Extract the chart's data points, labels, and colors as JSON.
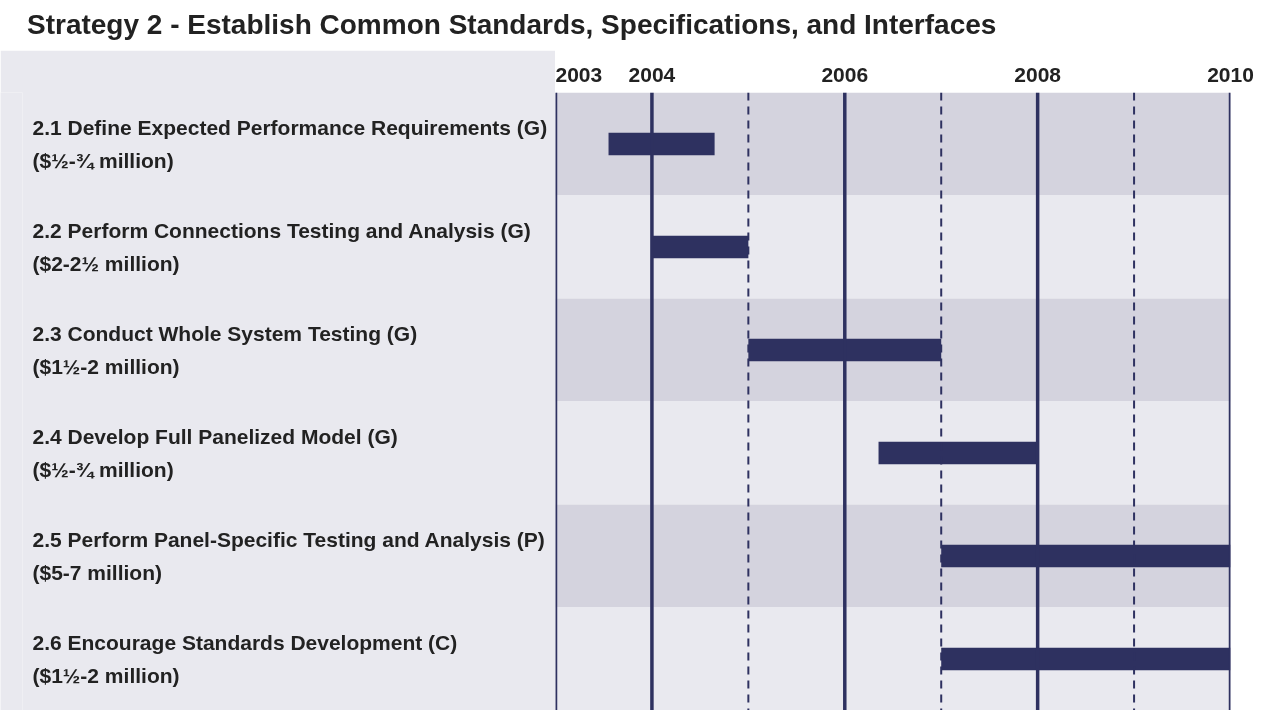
{
  "chart_data": {
    "type": "bar",
    "orientation": "horizontal",
    "title": "Strategy 2 - Establish Common Standards, Specifications, and Interfaces",
    "categories": [
      "2.1  Define Expected Performance Requirements (G)\n($½-¾ million)",
      "2.2  Perform Connections Testing and Analysis (G)\n($2-2½ million)",
      "2.3  Conduct Whole System Testing (G)\n($1½-2 million)",
      "2.4  Develop Full Panelized Model (G)\n($½-¾ million)",
      "2.5  Perform Panel-Specific Testing and Analysis (P)\n($5-7 million)",
      "2.6  Encourage Standards Development (C)\n($1½-2 million)"
    ],
    "base": [
      2003.55,
      2004,
      2005,
      2006.35,
      2007,
      2007
    ],
    "values": [
      1.1,
      1.0,
      2.0,
      1.65,
      3.0,
      3.0
    ],
    "color": "#2e3160",
    "xlim": [
      2003,
      2010
    ],
    "xticks": [
      2003,
      2004,
      {
        "value": 2005,
        "label": null
      },
      2006,
      {
        "value": 2007,
        "label": null
      },
      2008,
      {
        "value": 2009,
        "label": null
      },
      2010
    ],
    "grid": "x"
  }
}
